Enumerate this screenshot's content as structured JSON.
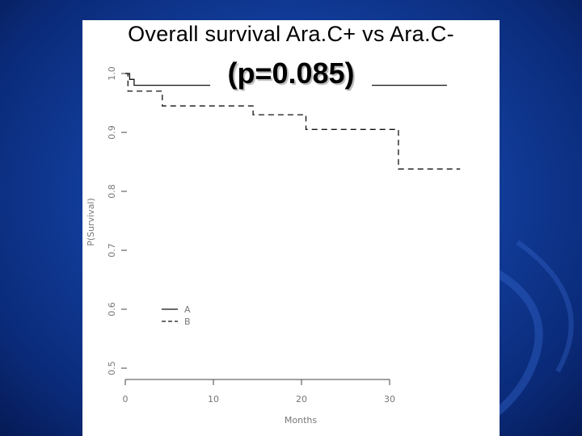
{
  "slide": {
    "title": "Overall survival Ara.C+ vs Ara.C-",
    "subtitle": "(p=0.085)"
  },
  "chart_data": {
    "type": "line",
    "title": "Overall survival Ara.C+ vs Ara.C-",
    "subtitle": "(p=0.085)",
    "xlabel": "Months",
    "ylabel": "P(Survival)",
    "xlim": [
      0,
      38
    ],
    "ylim": [
      0.5,
      1.0
    ],
    "x_ticks": [
      "0",
      "10",
      "20",
      "30"
    ],
    "y_ticks": [
      "0.5",
      "0.6",
      "0.7",
      "0.8",
      "0.9",
      "1.0"
    ],
    "grid": false,
    "legend_position": "lower-left",
    "series": [
      {
        "name": "A",
        "line_style": "solid",
        "steps": [
          [
            0,
            1.0
          ],
          [
            0.5,
            1.0
          ],
          [
            0.5,
            0.99
          ],
          [
            1.0,
            0.99
          ],
          [
            1.0,
            0.98
          ],
          [
            36.5,
            0.98
          ]
        ]
      },
      {
        "name": "B",
        "line_style": "dashed",
        "steps": [
          [
            0,
            1.0
          ],
          [
            0.3,
            1.0
          ],
          [
            0.3,
            0.97
          ],
          [
            4.2,
            0.97
          ],
          [
            4.2,
            0.945
          ],
          [
            14.5,
            0.945
          ],
          [
            14.5,
            0.93
          ],
          [
            20.5,
            0.93
          ],
          [
            20.5,
            0.905
          ],
          [
            31.0,
            0.905
          ],
          [
            31.0,
            0.838
          ],
          [
            38.0,
            0.838
          ]
        ]
      }
    ]
  }
}
